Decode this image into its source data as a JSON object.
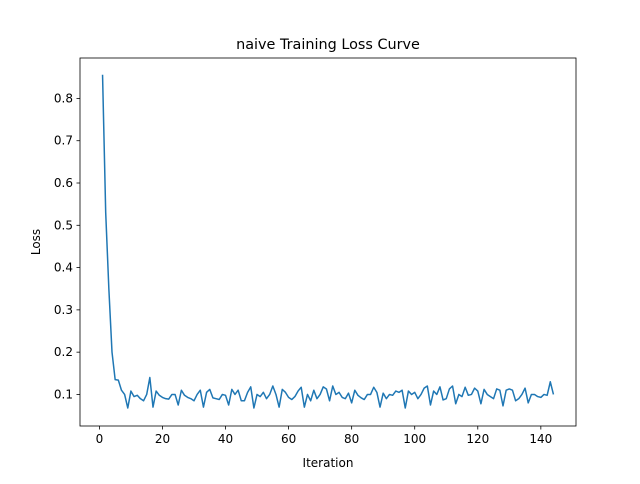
{
  "chart_data": {
    "type": "line",
    "title": "naive Training Loss Curve",
    "x_label": "Iteration",
    "y_label": "Loss",
    "x": [
      1,
      2,
      3,
      4,
      5,
      6,
      7,
      8,
      9,
      10,
      11,
      12,
      13,
      14,
      15,
      16,
      17,
      18,
      19,
      20,
      21,
      22,
      23,
      24,
      25,
      26,
      27,
      28,
      29,
      30,
      31,
      32,
      33,
      34,
      35,
      36,
      37,
      38,
      39,
      40,
      41,
      42,
      43,
      44,
      45,
      46,
      47,
      48,
      49,
      50,
      51,
      52,
      53,
      54,
      55,
      56,
      57,
      58,
      59,
      60,
      61,
      62,
      63,
      64,
      65,
      66,
      67,
      68,
      69,
      70,
      71,
      72,
      73,
      74,
      75,
      76,
      77,
      78,
      79,
      80,
      81,
      82,
      83,
      84,
      85,
      86,
      87,
      88,
      89,
      90,
      91,
      92,
      93,
      94,
      95,
      96,
      97,
      98,
      99,
      100,
      101,
      102,
      103,
      104,
      105,
      106,
      107,
      108,
      109,
      110,
      111,
      112,
      113,
      114,
      115,
      116,
      117,
      118,
      119,
      120,
      121,
      122,
      123,
      124,
      125,
      126,
      127,
      128,
      129,
      130,
      131,
      132,
      133,
      134,
      135,
      136,
      137,
      138,
      139,
      140,
      141,
      142,
      143,
      144
    ],
    "series": [
      {
        "name": "naive",
        "color": "#1f77b4",
        "values": [
          0.856,
          0.53,
          0.35,
          0.2,
          0.135,
          0.134,
          0.11,
          0.1,
          0.068,
          0.108,
          0.095,
          0.098,
          0.09,
          0.085,
          0.1,
          0.14,
          0.07,
          0.108,
          0.098,
          0.093,
          0.09,
          0.089,
          0.1,
          0.1,
          0.075,
          0.11,
          0.098,
          0.093,
          0.09,
          0.085,
          0.1,
          0.11,
          0.07,
          0.105,
          0.112,
          0.092,
          0.09,
          0.088,
          0.1,
          0.098,
          0.075,
          0.112,
          0.1,
          0.11,
          0.085,
          0.085,
          0.105,
          0.118,
          0.068,
          0.1,
          0.095,
          0.105,
          0.09,
          0.1,
          0.12,
          0.1,
          0.07,
          0.112,
          0.105,
          0.093,
          0.088,
          0.095,
          0.108,
          0.117,
          0.07,
          0.1,
          0.085,
          0.11,
          0.09,
          0.1,
          0.118,
          0.113,
          0.085,
          0.12,
          0.1,
          0.105,
          0.093,
          0.09,
          0.103,
          0.08,
          0.11,
          0.098,
          0.092,
          0.088,
          0.1,
          0.1,
          0.117,
          0.105,
          0.07,
          0.103,
          0.09,
          0.1,
          0.098,
          0.108,
          0.105,
          0.11,
          0.068,
          0.108,
          0.1,
          0.105,
          0.09,
          0.1,
          0.115,
          0.12,
          0.075,
          0.108,
          0.1,
          0.118,
          0.087,
          0.09,
          0.113,
          0.12,
          0.078,
          0.1,
          0.095,
          0.117,
          0.098,
          0.1,
          0.115,
          0.108,
          0.078,
          0.112,
          0.1,
          0.095,
          0.09,
          0.113,
          0.11,
          0.073,
          0.11,
          0.113,
          0.11,
          0.085,
          0.09,
          0.1,
          0.115,
          0.08,
          0.1,
          0.1,
          0.095,
          0.093,
          0.1,
          0.098,
          0.13,
          0.1
        ]
      }
    ],
    "xlim": [
      -6.15,
      151.15
    ],
    "ylim": [
      0.0254,
      0.8956
    ],
    "xticks": [
      0,
      20,
      40,
      60,
      80,
      100,
      120,
      140
    ],
    "yticks": [
      0.1,
      0.2,
      0.3,
      0.4,
      0.5,
      0.6,
      0.7,
      0.8
    ]
  }
}
